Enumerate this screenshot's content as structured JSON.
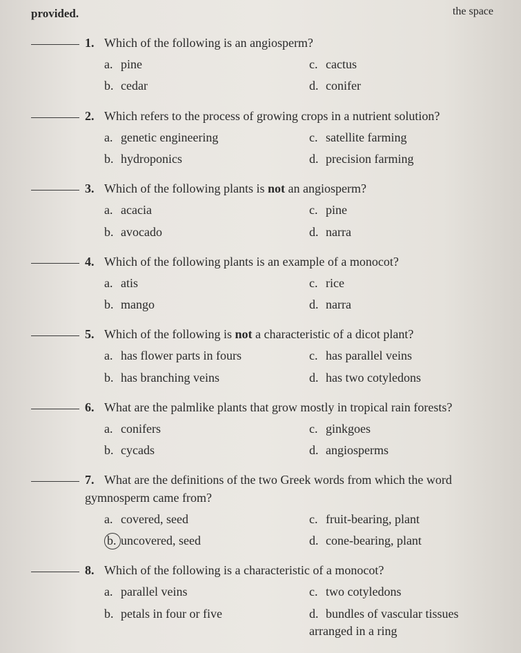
{
  "header_fragment_right": "the space",
  "header_text": "provided.",
  "questions": [
    {
      "num": "1.",
      "text": "Which of the following is an angiosperm?",
      "a": "pine",
      "b": "cedar",
      "c": "cactus",
      "d": "conifer"
    },
    {
      "num": "2.",
      "text": "Which refers to the process of growing crops in a nutrient solution?",
      "a": "genetic engineering",
      "b": "hydroponics",
      "c": "satellite farming",
      "d": "precision farming"
    },
    {
      "num": "3.",
      "text_pre": "Which of the following plants is ",
      "bold": "not",
      "text_post": " an angiosperm?",
      "a": "acacia",
      "b": "avocado",
      "c": "pine",
      "d": "narra"
    },
    {
      "num": "4.",
      "text": "Which of the following plants is an example of a monocot?",
      "a": "atis",
      "b": "mango",
      "c": "rice",
      "d": "narra"
    },
    {
      "num": "5.",
      "text_pre": "Which of the following is ",
      "bold": "not",
      "text_post": " a characteristic of a dicot plant?",
      "a": "has flower parts in fours",
      "b": "has branching veins",
      "c": "has parallel veins",
      "d": "has two cotyledons"
    },
    {
      "num": "6.",
      "text": "What are the palmlike plants that grow mostly in tropical rain forests?",
      "a": "conifers",
      "b": "cycads",
      "c": "ginkgoes",
      "d": "angiosperms"
    },
    {
      "num": "7.",
      "text": "What are the definitions of the two Greek words from which the word gymnosperm came from?",
      "a": "covered, seed",
      "b": "uncovered, seed",
      "c": "fruit-bearing, plant",
      "d": "cone-bearing, plant",
      "circled": "b"
    },
    {
      "num": "8.",
      "text": "Which of the following is a characteristic of a monocot?",
      "a": "parallel veins",
      "b": "petals in four or five",
      "c": "two cotyledons",
      "d": "bundles of vascular tissues arranged in a ring"
    }
  ],
  "option_labels": {
    "a": "a.",
    "b": "b.",
    "c": "c.",
    "d": "d."
  }
}
